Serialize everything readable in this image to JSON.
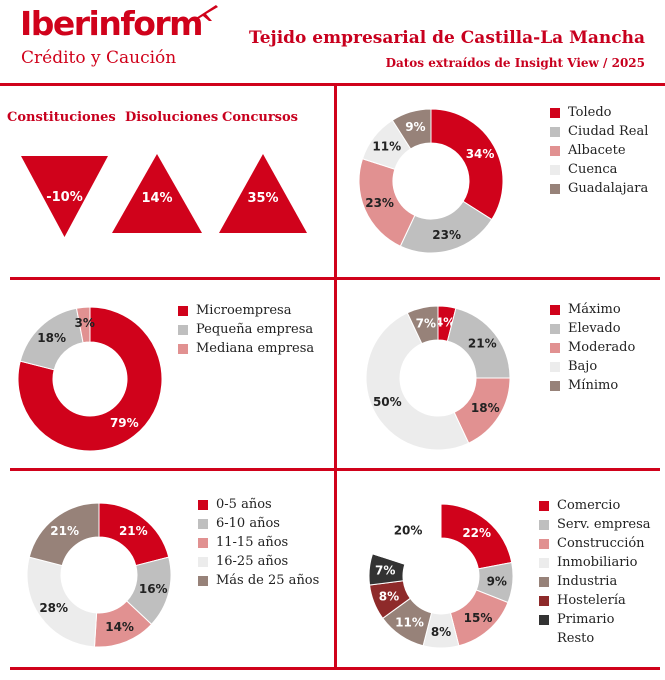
{
  "header": {
    "logo": "Iberinform",
    "logo_sub": "Crédito y Caución",
    "title": "Tejido empresarial de Castilla-La Mancha",
    "subtitle": "Datos extraídos de Insight View / 2025"
  },
  "colors": {
    "brand": "#d0021b",
    "palette": [
      "#d0021b",
      "#bfbfbf",
      "#e19191",
      "#ececec",
      "#978279",
      "#8e2a2a",
      "#333333"
    ]
  },
  "chart_data": [
    {
      "id": "indicators",
      "type": "table",
      "categories": [
        "Constituciones",
        "Disoluciones",
        "Concursos"
      ],
      "values": [
        -10,
        14,
        35
      ],
      "value_labels": [
        "-10%",
        "14%",
        "35%"
      ],
      "shape": [
        "triangle-down",
        "triangle-up",
        "triangle-up"
      ]
    },
    {
      "id": "province",
      "type": "pie",
      "donut": true,
      "categories": [
        "Toledo",
        "Ciudad Real",
        "Albacete",
        "Cuenca",
        "Guadalajara"
      ],
      "values": [
        34,
        23,
        23,
        11,
        9
      ],
      "labels": [
        "34%",
        "23%",
        "23%",
        "11%",
        "9%"
      ],
      "colors": [
        "#d0021b",
        "#bfbfbf",
        "#e19191",
        "#ececec",
        "#978279"
      ],
      "legend": "right"
    },
    {
      "id": "size",
      "type": "pie",
      "donut": true,
      "categories": [
        "Microempresa",
        "Pequeña empresa",
        "Mediana empresa"
      ],
      "values": [
        79,
        18,
        3
      ],
      "labels": [
        "79%",
        "18%",
        "3%"
      ],
      "colors": [
        "#d0021b",
        "#bfbfbf",
        "#e19191"
      ],
      "legend": "right"
    },
    {
      "id": "risk",
      "type": "pie",
      "donut": true,
      "categories": [
        "Máximo",
        "Elevado",
        "Moderado",
        "Bajo",
        "Mínimo"
      ],
      "values": [
        4,
        21,
        18,
        50,
        7
      ],
      "labels": [
        "4%",
        "21%",
        "18%",
        "50%",
        "7%"
      ],
      "colors": [
        "#d0021b",
        "#bfbfbf",
        "#e19191",
        "#ececec",
        "#978279"
      ],
      "legend": "right"
    },
    {
      "id": "age",
      "type": "pie",
      "donut": true,
      "categories": [
        "0-5 años",
        "6-10 años",
        "11-15 años",
        "16-25 años",
        "Más de 25 años"
      ],
      "values": [
        21,
        16,
        14,
        28,
        21
      ],
      "labels": [
        "21%",
        "16%",
        "14%",
        "28%",
        "21%"
      ],
      "colors": [
        "#d0021b",
        "#bfbfbf",
        "#e19191",
        "#ececec",
        "#978279"
      ],
      "legend": "right"
    },
    {
      "id": "sector",
      "type": "pie",
      "donut": true,
      "categories": [
        "Comercio",
        "Serv. empresa",
        "Construcción",
        "Inmobiliario",
        "Industria",
        "Hostelería",
        "Primario",
        "Resto"
      ],
      "values": [
        22,
        9,
        15,
        8,
        11,
        8,
        7,
        20
      ],
      "labels": [
        "22%",
        "9%",
        "15%",
        "8%",
        "11%",
        "8%",
        "7%",
        "20%"
      ],
      "colors": [
        "#d0021b",
        "#bfbfbf",
        "#e19191",
        "#ececec",
        "#978279",
        "#8e2a2a",
        "#333333",
        "#ffffff"
      ],
      "legend": "right"
    }
  ]
}
